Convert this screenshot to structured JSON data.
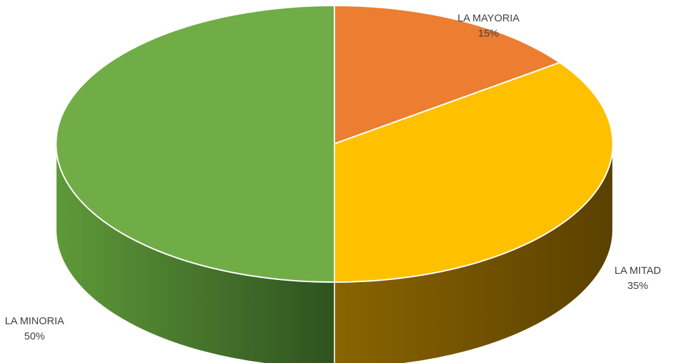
{
  "chart_data": {
    "type": "pie",
    "style": "3d",
    "title": "",
    "slices": [
      {
        "label": "LA MAYORIA",
        "value": 15,
        "value_label": "15%",
        "color": "#ED7D31",
        "side_color": "#A8531A"
      },
      {
        "label": "LA MITAD",
        "value": 35,
        "value_label": "35%",
        "color": "#FFC000",
        "side_color": "#7A5A00"
      },
      {
        "label": "LA MINORIA",
        "value": 50,
        "value_label": "50%",
        "color": "#70AD47",
        "side_color": "#3E6B26"
      }
    ],
    "legend": "none",
    "edge_color": "#FFFFFF"
  }
}
